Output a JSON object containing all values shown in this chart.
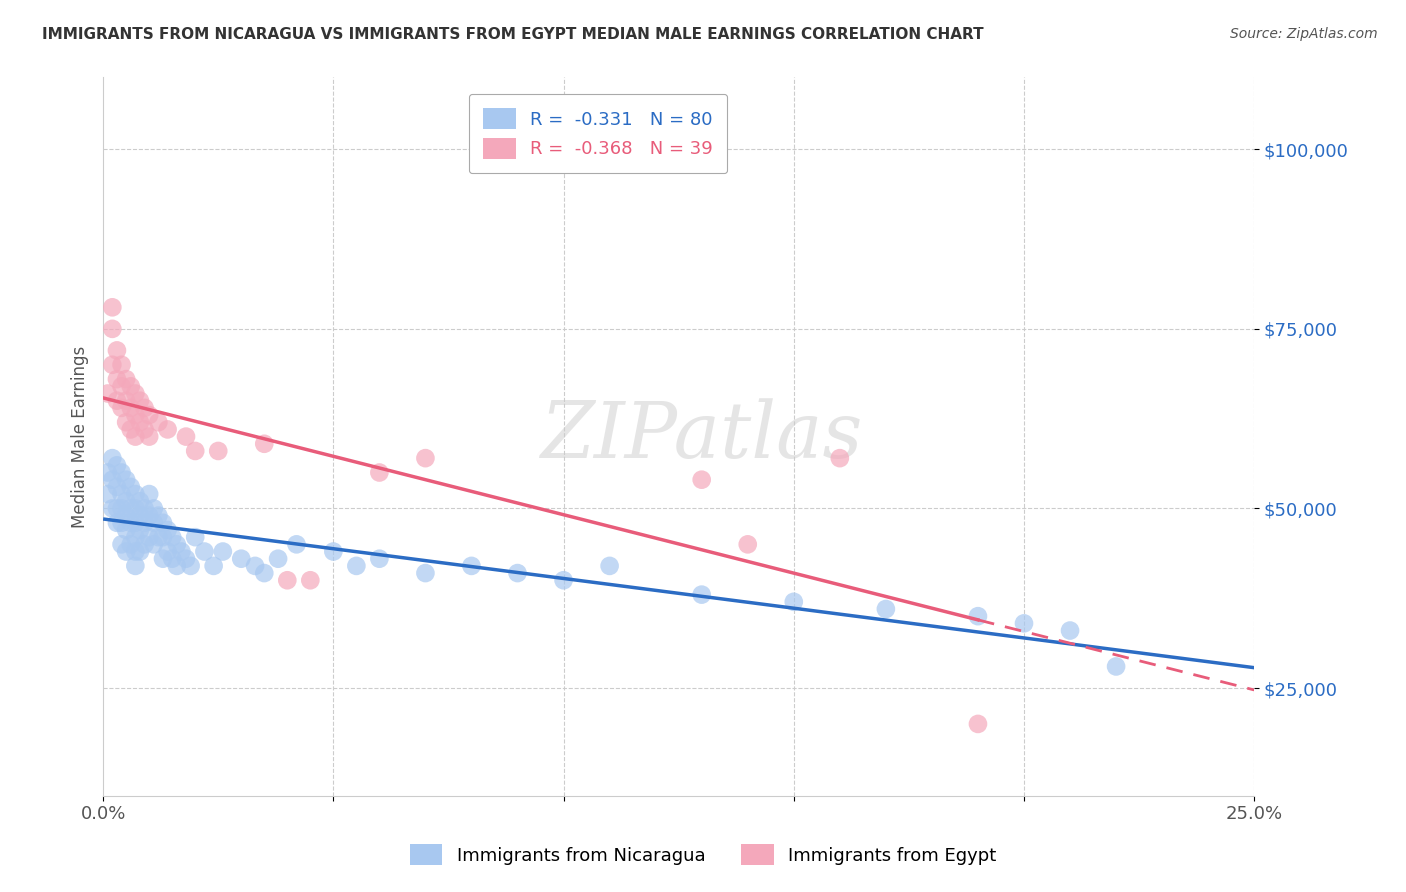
{
  "title": "IMMIGRANTS FROM NICARAGUA VS IMMIGRANTS FROM EGYPT MEDIAN MALE EARNINGS CORRELATION CHART",
  "source": "Source: ZipAtlas.com",
  "ylabel": "Median Male Earnings",
  "xlim": [
    0.0,
    0.25
  ],
  "ylim": [
    10000,
    110000
  ],
  "yticks": [
    25000,
    50000,
    75000,
    100000
  ],
  "ytick_labels": [
    "$25,000",
    "$50,000",
    "$75,000",
    "$100,000"
  ],
  "xticks": [
    0.0,
    0.05,
    0.1,
    0.15,
    0.2,
    0.25
  ],
  "xtick_labels": [
    "0.0%",
    "",
    "",
    "",
    "",
    "25.0%"
  ],
  "nicaragua_color": "#A8C8F0",
  "egypt_color": "#F4A8BB",
  "nicaragua_line_color": "#2B6CC4",
  "egypt_line_color": "#E85C7A",
  "nicaragua_R": -0.331,
  "nicaragua_N": 80,
  "egypt_R": -0.368,
  "egypt_N": 39,
  "watermark": "ZIPatlas",
  "nicaragua_scatter_x": [
    0.001,
    0.001,
    0.002,
    0.002,
    0.002,
    0.003,
    0.003,
    0.003,
    0.003,
    0.004,
    0.004,
    0.004,
    0.004,
    0.004,
    0.005,
    0.005,
    0.005,
    0.005,
    0.005,
    0.006,
    0.006,
    0.006,
    0.006,
    0.007,
    0.007,
    0.007,
    0.007,
    0.007,
    0.007,
    0.008,
    0.008,
    0.008,
    0.008,
    0.009,
    0.009,
    0.009,
    0.01,
    0.01,
    0.01,
    0.011,
    0.011,
    0.011,
    0.012,
    0.012,
    0.013,
    0.013,
    0.013,
    0.014,
    0.014,
    0.015,
    0.015,
    0.016,
    0.016,
    0.017,
    0.018,
    0.019,
    0.02,
    0.022,
    0.024,
    0.026,
    0.03,
    0.033,
    0.035,
    0.038,
    0.042,
    0.05,
    0.055,
    0.06,
    0.07,
    0.08,
    0.09,
    0.1,
    0.11,
    0.13,
    0.15,
    0.17,
    0.19,
    0.2,
    0.21,
    0.22
  ],
  "nicaragua_scatter_y": [
    55000,
    52000,
    57000,
    54000,
    50000,
    56000,
    53000,
    50000,
    48000,
    55000,
    52000,
    50000,
    48000,
    45000,
    54000,
    51000,
    49000,
    47000,
    44000,
    53000,
    50000,
    48000,
    45000,
    52000,
    50000,
    48000,
    46000,
    44000,
    42000,
    51000,
    49000,
    47000,
    44000,
    50000,
    48000,
    45000,
    52000,
    49000,
    46000,
    50000,
    48000,
    45000,
    49000,
    46000,
    48000,
    46000,
    43000,
    47000,
    44000,
    46000,
    43000,
    45000,
    42000,
    44000,
    43000,
    42000,
    46000,
    44000,
    42000,
    44000,
    43000,
    42000,
    41000,
    43000,
    45000,
    44000,
    42000,
    43000,
    41000,
    42000,
    41000,
    40000,
    42000,
    38000,
    37000,
    36000,
    35000,
    34000,
    33000,
    28000
  ],
  "egypt_scatter_x": [
    0.001,
    0.002,
    0.002,
    0.002,
    0.003,
    0.003,
    0.003,
    0.004,
    0.004,
    0.004,
    0.005,
    0.005,
    0.005,
    0.006,
    0.006,
    0.006,
    0.007,
    0.007,
    0.007,
    0.008,
    0.008,
    0.009,
    0.009,
    0.01,
    0.01,
    0.012,
    0.014,
    0.018,
    0.02,
    0.025,
    0.035,
    0.04,
    0.045,
    0.06,
    0.07,
    0.13,
    0.14,
    0.16,
    0.19
  ],
  "egypt_scatter_y": [
    66000,
    78000,
    75000,
    70000,
    72000,
    68000,
    65000,
    70000,
    67000,
    64000,
    68000,
    65000,
    62000,
    67000,
    64000,
    61000,
    66000,
    63000,
    60000,
    65000,
    62000,
    64000,
    61000,
    63000,
    60000,
    62000,
    61000,
    60000,
    58000,
    58000,
    59000,
    40000,
    40000,
    55000,
    57000,
    54000,
    45000,
    57000,
    20000
  ]
}
